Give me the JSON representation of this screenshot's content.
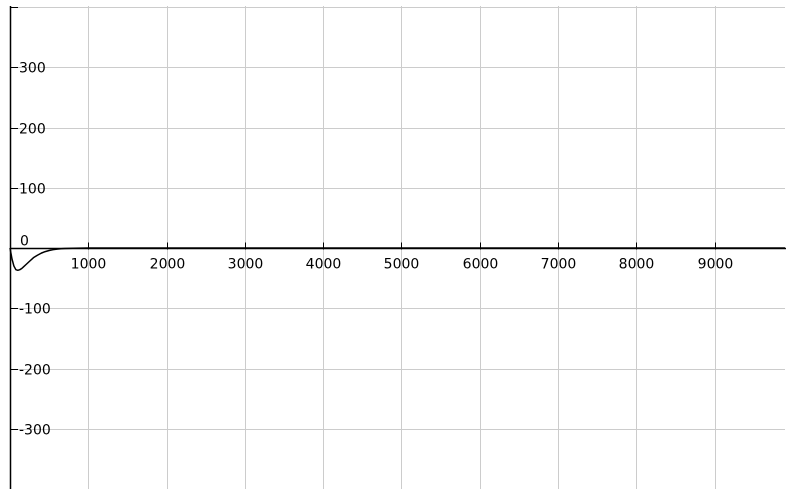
{
  "chart_data": {
    "type": "line",
    "title": "",
    "xlabel": "",
    "ylabel": "",
    "grid": true,
    "legend": "none",
    "xlim": [
      0,
      9900
    ],
    "ylim": [
      -400,
      400
    ],
    "x_ticks": [
      {
        "value": 1000,
        "label": "1000"
      },
      {
        "value": 2000,
        "label": "2000"
      },
      {
        "value": 3000,
        "label": "3000"
      },
      {
        "value": 4000,
        "label": "4000"
      },
      {
        "value": 5000,
        "label": "5000"
      },
      {
        "value": 6000,
        "label": "6000"
      },
      {
        "value": 7000,
        "label": "7000"
      },
      {
        "value": 8000,
        "label": "8000"
      },
      {
        "value": 9000,
        "label": "9000"
      }
    ],
    "y_ticks": [
      {
        "value": 300,
        "label": "300"
      },
      {
        "value": 200,
        "label": "200"
      },
      {
        "value": 100,
        "label": "100"
      },
      {
        "value": 0,
        "label": "0"
      },
      {
        "value": -100,
        "label": "-100"
      },
      {
        "value": -200,
        "label": "-200"
      },
      {
        "value": -300,
        "label": "-300"
      }
    ],
    "x_grid": [
      1000,
      2000,
      3000,
      4000,
      5000,
      6000,
      7000,
      8000,
      9000
    ],
    "y_grid": [
      400,
      300,
      200,
      100,
      -100,
      -200,
      -300
    ],
    "series": [
      {
        "color": "#000000",
        "x": [
          0,
          25,
          50,
          75,
          100,
          125,
          150,
          175,
          200,
          250,
          300,
          350,
          400,
          450,
          500,
          550,
          600,
          650,
          700,
          750,
          800,
          900,
          1000,
          1500,
          2000,
          3000,
          4000,
          5000,
          6000,
          7000,
          8000,
          9000,
          9900
        ],
        "y": [
          0,
          -18,
          -30,
          -36,
          -37,
          -36,
          -34,
          -31,
          -28,
          -22,
          -16,
          -12,
          -8.5,
          -6,
          -4.1,
          -2.8,
          -1.9,
          -1.3,
          -0.9,
          -0.6,
          -0.4,
          -0.18,
          -0.08,
          0,
          0,
          0,
          0,
          0,
          0,
          0,
          0,
          0,
          0
        ]
      }
    ],
    "colors": {
      "axis": "#000000",
      "grid": "#cccccc"
    }
  }
}
